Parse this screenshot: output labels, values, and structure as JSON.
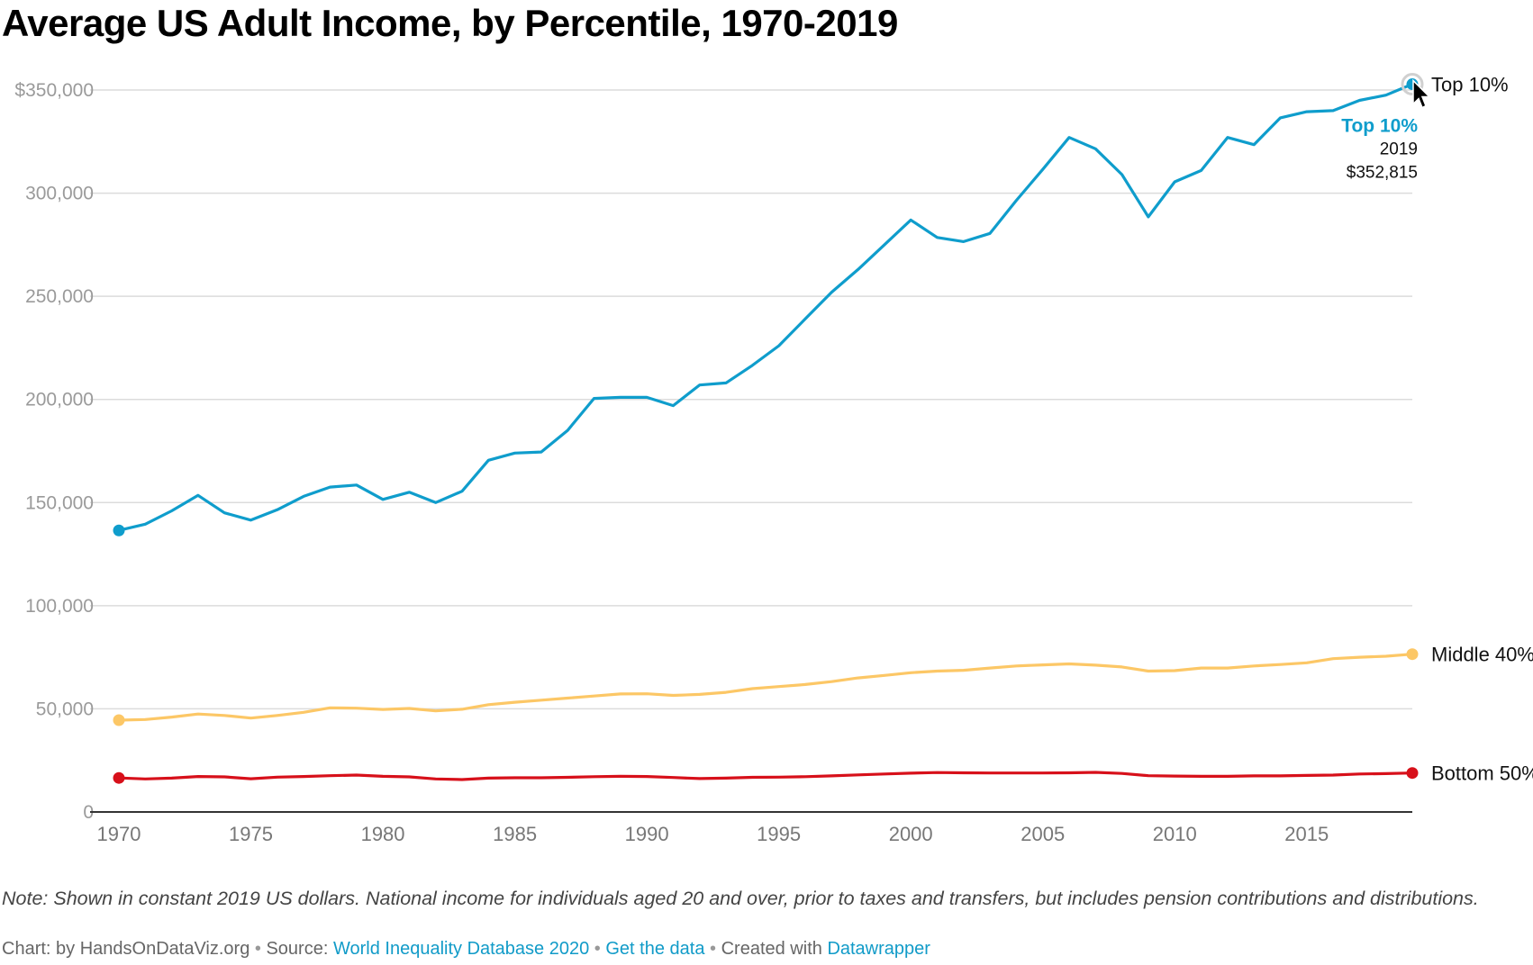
{
  "title": "Average US Adult Income, by Percentile, 1970-2019",
  "note": "Note: Shown in constant 2019 US dollars. National income for individuals aged 20 and over, prior to taxes and transfers, but includes pension contributions and distributions.",
  "footer": {
    "chart_prefix": "Chart: by HandsOnDataViz.org",
    "source_prefix": "Source:",
    "source_link": "World Inequality Database 2020",
    "data_link": "Get the data",
    "created_prefix": "Created with",
    "tool_link": "Datawrapper",
    "separator": "•"
  },
  "tooltip": {
    "series": "Top 10%",
    "year": "2019",
    "value": "$352,815"
  },
  "colors": {
    "top": "#0f9dcc",
    "middle": "#fcc766",
    "bottom": "#d7101a",
    "grid": "#dcdcdc",
    "axis": "#333333"
  },
  "chart_data": {
    "type": "line",
    "title": "Average US Adult Income, by Percentile, 1970-2019",
    "xlabel": "",
    "ylabel": "",
    "xlim": [
      1970,
      2019
    ],
    "ylim": [
      0,
      350000
    ],
    "grid": "horizontal",
    "x_ticks": [
      "1970",
      "1975",
      "1980",
      "1985",
      "1990",
      "1995",
      "2000",
      "2005",
      "2010",
      "2015"
    ],
    "y_ticks": [
      {
        "value": 0,
        "label": "0"
      },
      {
        "value": 50000,
        "label": "50,000"
      },
      {
        "value": 100000,
        "label": "100,000"
      },
      {
        "value": 150000,
        "label": "150,000"
      },
      {
        "value": 200000,
        "label": "200,000"
      },
      {
        "value": 250000,
        "label": "250,000"
      },
      {
        "value": 300000,
        "label": "300,000"
      },
      {
        "value": 350000,
        "label": "$350,000"
      }
    ],
    "x": [
      1970,
      1971,
      1972,
      1973,
      1974,
      1975,
      1976,
      1977,
      1978,
      1979,
      1980,
      1981,
      1982,
      1983,
      1984,
      1985,
      1986,
      1987,
      1988,
      1989,
      1990,
      1991,
      1992,
      1993,
      1994,
      1995,
      1996,
      1997,
      1998,
      1999,
      2000,
      2001,
      2002,
      2003,
      2004,
      2005,
      2006,
      2007,
      2008,
      2009,
      2010,
      2011,
      2012,
      2013,
      2014,
      2015,
      2016,
      2017,
      2018,
      2019
    ],
    "series": [
      {
        "name": "Top 10%",
        "color": "#0f9dcc",
        "values": [
          136500,
          139500,
          146000,
          153500,
          145000,
          141500,
          146500,
          153000,
          157500,
          158500,
          151500,
          155000,
          150000,
          155500,
          170500,
          174000,
          174500,
          185000,
          200500,
          201000,
          201000,
          197000,
          207000,
          208000,
          216500,
          226000,
          239000,
          252000,
          263000,
          275000,
          287000,
          278500,
          276500,
          280500,
          296500,
          311500,
          327000,
          321500,
          309000,
          288500,
          305500,
          311000,
          327000,
          323500,
          336500,
          339500,
          340000,
          345000,
          347500,
          352815
        ]
      },
      {
        "name": "Middle 40%",
        "color": "#fcc766",
        "values": [
          44500,
          44800,
          46000,
          47500,
          46800,
          45500,
          46800,
          48300,
          50500,
          50300,
          49700,
          50200,
          49000,
          49800,
          52000,
          53200,
          54200,
          55200,
          56200,
          57200,
          57300,
          56500,
          57000,
          58000,
          59800,
          60800,
          61800,
          63200,
          65000,
          66200,
          67500,
          68300,
          68700,
          69800,
          70800,
          71300,
          71800,
          71200,
          70300,
          68300,
          68500,
          69800,
          69800,
          70800,
          71500,
          72300,
          74300,
          75000,
          75500,
          76500
        ]
      },
      {
        "name": "Bottom 50%",
        "color": "#d7101a",
        "values": [
          16500,
          16000,
          16400,
          17200,
          17000,
          16100,
          16900,
          17200,
          17600,
          17900,
          17300,
          17000,
          16000,
          15700,
          16400,
          16600,
          16600,
          16800,
          17100,
          17300,
          17200,
          16700,
          16200,
          16400,
          16800,
          16900,
          17100,
          17500,
          18000,
          18400,
          18800,
          19100,
          19000,
          18900,
          18900,
          18900,
          19000,
          19200,
          18700,
          17600,
          17400,
          17300,
          17300,
          17500,
          17500,
          17700,
          17900,
          18400,
          18600,
          18900
        ]
      }
    ]
  }
}
